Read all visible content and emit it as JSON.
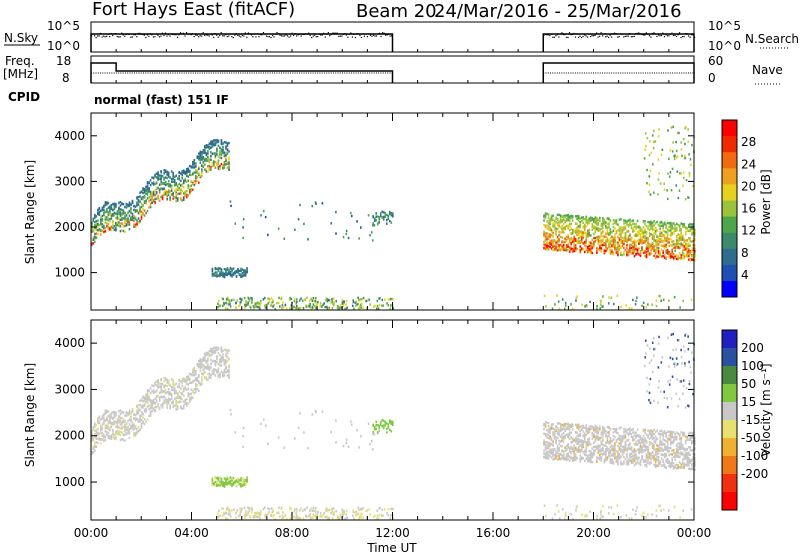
{
  "header": {
    "station": "Fort Hays East (fitACF)",
    "beam": "Beam 20",
    "date_range": "24/Mar/2016 - 25/Mar/2016"
  },
  "status_panels": {
    "nsky_label": "N.Sky",
    "nsky_ticks": [
      "10^5",
      "10^0"
    ],
    "nsearch_label": "N.Search",
    "nsearch_ticks": [
      "10^5",
      "10^0"
    ],
    "freq_label": "Freq.",
    "freq_unit": "[MHz]",
    "freq_ticks": [
      "18",
      "8"
    ],
    "nave_label": "Nave",
    "nave_ticks": [
      "60",
      "0"
    ],
    "cpid_label": "CPID",
    "cpid_text": "normal (fast) 151 IF"
  },
  "colors": {
    "power": [
      "#0000ff",
      "#1f4fb0",
      "#2f6d8e",
      "#3b8a6b",
      "#4ea64b",
      "#9cc23b",
      "#e6d21e",
      "#f0a020",
      "#f26a10",
      "#f02a00",
      "#ff0000"
    ],
    "velocity": [
      "#2020c0",
      "#2a50a0",
      "#4a8a40",
      "#80c840",
      "#c8c8c8",
      "#e8e070",
      "#f0b030",
      "#f07818",
      "#f03010",
      "#ff0000"
    ]
  },
  "chart_data": [
    {
      "type": "heatmap",
      "name": "power",
      "xlabel": "Time UT",
      "ylabel": "Slant Range [km]",
      "x_ticks": [
        "00:00",
        "04:00",
        "08:00",
        "12:00",
        "16:00",
        "20:00",
        "00:00"
      ],
      "x_range_hours": [
        0,
        24
      ],
      "ylim": [
        180,
        4500
      ],
      "y_ticks": [
        1000,
        2000,
        3000,
        4000
      ],
      "colorbar": {
        "label": "Power [dB]",
        "range": [
          0,
          32
        ],
        "ticks": [
          4,
          8,
          12,
          16,
          20,
          24,
          28
        ]
      }
    },
    {
      "type": "heatmap",
      "name": "velocity",
      "xlabel": "Time UT",
      "ylabel": "Slant Range [km]",
      "x_ticks": [
        "00:00",
        "04:00",
        "08:00",
        "12:00",
        "16:00",
        "20:00",
        "00:00"
      ],
      "x_range_hours": [
        0,
        24
      ],
      "ylim": [
        180,
        4500
      ],
      "y_ticks": [
        1000,
        2000,
        3000,
        4000
      ],
      "colorbar": {
        "label": "Velocity [m s⁻¹]",
        "ticks": [
          "200",
          "100",
          "50",
          "15",
          "-15",
          "-50",
          "-100",
          "-200"
        ]
      }
    }
  ]
}
